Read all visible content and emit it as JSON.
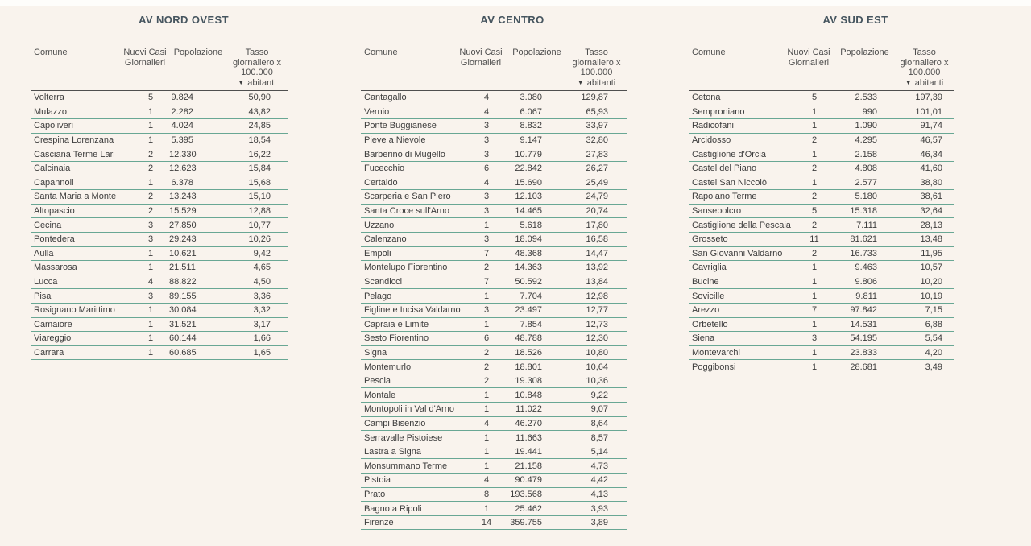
{
  "page": {
    "background": "#f9f3ed",
    "row_line_color": "#69a794",
    "header_rule_color": "#4f4f4f",
    "title_color": "#46555f"
  },
  "columns": {
    "comune": "Comune",
    "nuovi_casi": "Nuovi Casi Giornalieri",
    "popolazione": "Popolazione",
    "tasso_line1": "Tasso",
    "tasso_line2": "giornaliero x",
    "tasso_line3": "100.000",
    "tasso_line4": "abitanti",
    "sort_icon": "▼"
  },
  "chart_data": [
    {
      "type": "table",
      "title": "AV NORD OVEST",
      "columns": [
        "Comune",
        "Nuovi Casi Giornalieri",
        "Popolazione",
        "Tasso giornaliero x 100.000 abitanti"
      ],
      "sorted_by": "Tasso giornaliero x 100.000 abitanti",
      "sort_order": "descending",
      "rows": [
        [
          "Volterra",
          "5",
          "9.824",
          "50,90"
        ],
        [
          "Mulazzo",
          "1",
          "2.282",
          "43,82"
        ],
        [
          "Capoliveri",
          "1",
          "4.024",
          "24,85"
        ],
        [
          "Crespina Lorenzana",
          "1",
          "5.395",
          "18,54"
        ],
        [
          "Casciana Terme Lari",
          "2",
          "12.330",
          "16,22"
        ],
        [
          "Calcinaia",
          "2",
          "12.623",
          "15,84"
        ],
        [
          "Capannoli",
          "1",
          "6.378",
          "15,68"
        ],
        [
          "Santa Maria a Monte",
          "2",
          "13.243",
          "15,10"
        ],
        [
          "Altopascio",
          "2",
          "15.529",
          "12,88"
        ],
        [
          "Cecina",
          "3",
          "27.850",
          "10,77"
        ],
        [
          "Pontedera",
          "3",
          "29.243",
          "10,26"
        ],
        [
          "Aulla",
          "1",
          "10.621",
          "9,42"
        ],
        [
          "Massarosa",
          "1",
          "21.511",
          "4,65"
        ],
        [
          "Lucca",
          "4",
          "88.822",
          "4,50"
        ],
        [
          "Pisa",
          "3",
          "89.155",
          "3,36"
        ],
        [
          "Rosignano Marittimo",
          "1",
          "30.084",
          "3,32"
        ],
        [
          "Camaiore",
          "1",
          "31.521",
          "3,17"
        ],
        [
          "Viareggio",
          "1",
          "60.144",
          "1,66"
        ],
        [
          "Carrara",
          "1",
          "60.685",
          "1,65"
        ]
      ]
    },
    {
      "type": "table",
      "title": "AV CENTRO",
      "columns": [
        "Comune",
        "Nuovi Casi Giornalieri",
        "Popolazione",
        "Tasso giornaliero x 100.000 abitanti"
      ],
      "sorted_by": "Tasso giornaliero x 100.000 abitanti",
      "sort_order": "descending",
      "rows": [
        [
          "Cantagallo",
          "4",
          "3.080",
          "129,87"
        ],
        [
          "Vernio",
          "4",
          "6.067",
          "65,93"
        ],
        [
          "Ponte Buggianese",
          "3",
          "8.832",
          "33,97"
        ],
        [
          "Pieve a Nievole",
          "3",
          "9.147",
          "32,80"
        ],
        [
          "Barberino di Mugello",
          "3",
          "10.779",
          "27,83"
        ],
        [
          "Fucecchio",
          "6",
          "22.842",
          "26,27"
        ],
        [
          "Certaldo",
          "4",
          "15.690",
          "25,49"
        ],
        [
          "Scarperia e San Piero",
          "3",
          "12.103",
          "24,79"
        ],
        [
          "Santa Croce sull'Arno",
          "3",
          "14.465",
          "20,74"
        ],
        [
          "Uzzano",
          "1",
          "5.618",
          "17,80"
        ],
        [
          "Calenzano",
          "3",
          "18.094",
          "16,58"
        ],
        [
          "Empoli",
          "7",
          "48.368",
          "14,47"
        ],
        [
          "Montelupo Fiorentino",
          "2",
          "14.363",
          "13,92"
        ],
        [
          "Scandicci",
          "7",
          "50.592",
          "13,84"
        ],
        [
          "Pelago",
          "1",
          "7.704",
          "12,98"
        ],
        [
          "Figline e Incisa Valdarno",
          "3",
          "23.497",
          "12,77"
        ],
        [
          "Capraia e Limite",
          "1",
          "7.854",
          "12,73"
        ],
        [
          "Sesto Fiorentino",
          "6",
          "48.788",
          "12,30"
        ],
        [
          "Signa",
          "2",
          "18.526",
          "10,80"
        ],
        [
          "Montemurlo",
          "2",
          "18.801",
          "10,64"
        ],
        [
          "Pescia",
          "2",
          "19.308",
          "10,36"
        ],
        [
          "Montale",
          "1",
          "10.848",
          "9,22"
        ],
        [
          "Montopoli in Val d'Arno",
          "1",
          "11.022",
          "9,07"
        ],
        [
          "Campi Bisenzio",
          "4",
          "46.270",
          "8,64"
        ],
        [
          "Serravalle Pistoiese",
          "1",
          "11.663",
          "8,57"
        ],
        [
          "Lastra a Signa",
          "1",
          "19.441",
          "5,14"
        ],
        [
          "Monsummano Terme",
          "1",
          "21.158",
          "4,73"
        ],
        [
          "Pistoia",
          "4",
          "90.479",
          "4,42"
        ],
        [
          "Prato",
          "8",
          "193.568",
          "4,13"
        ],
        [
          "Bagno a Ripoli",
          "1",
          "25.462",
          "3,93"
        ],
        [
          "Firenze",
          "14",
          "359.755",
          "3,89"
        ]
      ]
    },
    {
      "type": "table",
      "title": "AV SUD EST",
      "columns": [
        "Comune",
        "Nuovi Casi Giornalieri",
        "Popolazione",
        "Tasso giornaliero x 100.000 abitanti"
      ],
      "sorted_by": "Tasso giornaliero x 100.000 abitanti",
      "sort_order": "descending",
      "rows": [
        [
          "Cetona",
          "5",
          "2.533",
          "197,39"
        ],
        [
          "Semproniano",
          "1",
          "990",
          "101,01"
        ],
        [
          "Radicofani",
          "1",
          "1.090",
          "91,74"
        ],
        [
          "Arcidosso",
          "2",
          "4.295",
          "46,57"
        ],
        [
          "Castiglione d'Orcia",
          "1",
          "2.158",
          "46,34"
        ],
        [
          "Castel del Piano",
          "2",
          "4.808",
          "41,60"
        ],
        [
          "Castel San Niccolò",
          "1",
          "2.577",
          "38,80"
        ],
        [
          "Rapolano Terme",
          "2",
          "5.180",
          "38,61"
        ],
        [
          "Sansepolcro",
          "5",
          "15.318",
          "32,64"
        ],
        [
          "Castiglione della Pescaia",
          "2",
          "7.111",
          "28,13"
        ],
        [
          "Grosseto",
          "11",
          "81.621",
          "13,48"
        ],
        [
          "San Giovanni Valdarno",
          "2",
          "16.733",
          "11,95"
        ],
        [
          "Cavriglia",
          "1",
          "9.463",
          "10,57"
        ],
        [
          "Bucine",
          "1",
          "9.806",
          "10,20"
        ],
        [
          "Sovicille",
          "1",
          "9.811",
          "10,19"
        ],
        [
          "Arezzo",
          "7",
          "97.842",
          "7,15"
        ],
        [
          "Orbetello",
          "1",
          "14.531",
          "6,88"
        ],
        [
          "Siena",
          "3",
          "54.195",
          "5,54"
        ],
        [
          "Montevarchi",
          "1",
          "23.833",
          "4,20"
        ],
        [
          "Poggibonsi",
          "1",
          "28.681",
          "3,49"
        ]
      ]
    }
  ]
}
